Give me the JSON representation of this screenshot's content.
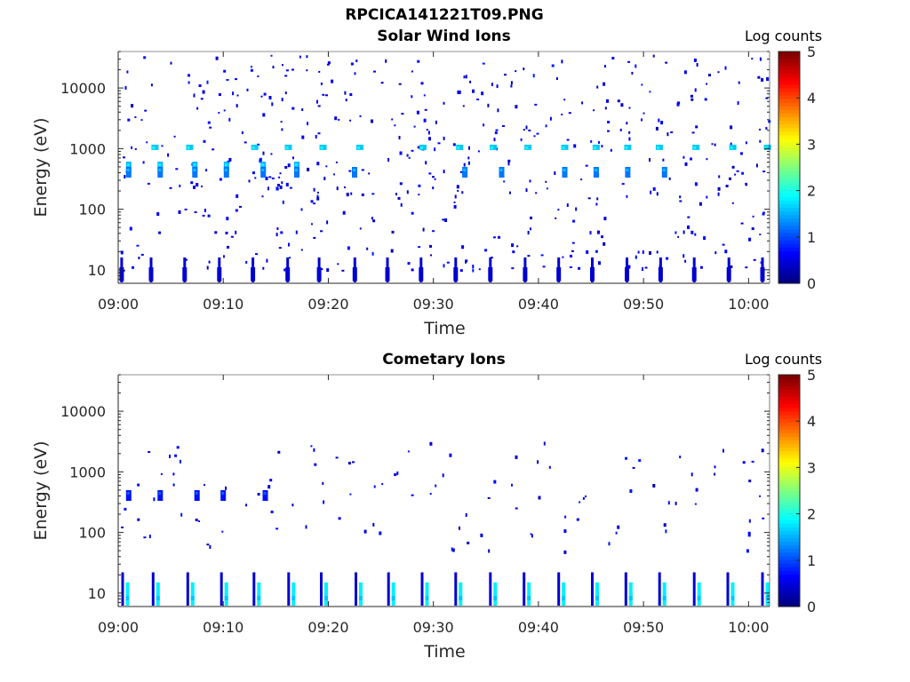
{
  "figure": {
    "title": "RPCICA141221T09.PNG"
  },
  "chart_data": [
    {
      "type": "heatmap",
      "title": "Solar Wind Ions",
      "xlabel": "Time",
      "ylabel": "Energy (eV)",
      "x_ticks": [
        "09:00",
        "09:10",
        "09:20",
        "09:30",
        "09:40",
        "09:50",
        "10:00"
      ],
      "x_range_minutes": [
        0,
        62
      ],
      "y_scale": "log",
      "y_ticks": [
        10,
        100,
        1000,
        10000
      ],
      "y_range": [
        6,
        40000
      ],
      "colorbar": {
        "label": "Log counts",
        "range": [
          0,
          5
        ],
        "ticks": [
          0,
          1,
          2,
          3,
          4,
          5
        ],
        "colormap": "jet"
      },
      "bands": [
        {
          "energy": 550,
          "level": 1.5,
          "times": [
            1,
            4,
            7.3,
            10.3,
            13.8,
            17
          ]
        },
        {
          "energy": 450,
          "level": 1.2,
          "times": [
            1,
            4,
            7.3,
            10.3,
            13.8,
            17,
            22.5,
            33,
            36.5,
            42.5,
            45.5,
            48.5,
            52
          ]
        },
        {
          "energy": 1050,
          "level": 1.6,
          "times": [
            3.5,
            6.8,
            13,
            16.2,
            19.5,
            23,
            29,
            32.5,
            35.7,
            39,
            42.5,
            45.5,
            48.5,
            51.5,
            55,
            58.5,
            61.8
          ]
        },
        {
          "energy": 10,
          "level": 0.4,
          "times": [
            0.2,
            3,
            6.2,
            9.5,
            12.7,
            16,
            19,
            22.4,
            25.5,
            28.7,
            32,
            35.3,
            38.6,
            41.8,
            45,
            48.3,
            51.5,
            54.7,
            58,
            61.2
          ]
        }
      ]
    },
    {
      "type": "heatmap",
      "title": "Cometary Ions",
      "xlabel": "Time",
      "ylabel": "Energy (eV)",
      "x_ticks": [
        "09:00",
        "09:10",
        "09:20",
        "09:30",
        "09:40",
        "09:50",
        "10:00"
      ],
      "x_range_minutes": [
        0,
        62
      ],
      "y_scale": "log",
      "y_ticks": [
        10,
        100,
        1000,
        10000
      ],
      "y_range": [
        6,
        40000
      ],
      "colorbar": {
        "label": "Log counts",
        "range": [
          0,
          5
        ],
        "ticks": [
          0,
          1,
          2,
          3,
          4,
          5
        ],
        "colormap": "jet"
      },
      "bands": [
        {
          "energy": 450,
          "level": 0.7,
          "times": [
            1,
            4,
            7.5,
            10,
            14
          ]
        },
        {
          "energy": 10,
          "level": 1.8,
          "times": [
            0.3,
            3.2,
            6.5,
            9.7,
            12.8,
            16.1,
            19.2,
            22.5,
            25.6,
            28.8,
            32,
            35.3,
            38.5,
            41.8,
            45,
            48.2,
            51.4,
            54.7,
            57.9,
            61.2
          ]
        }
      ]
    }
  ]
}
